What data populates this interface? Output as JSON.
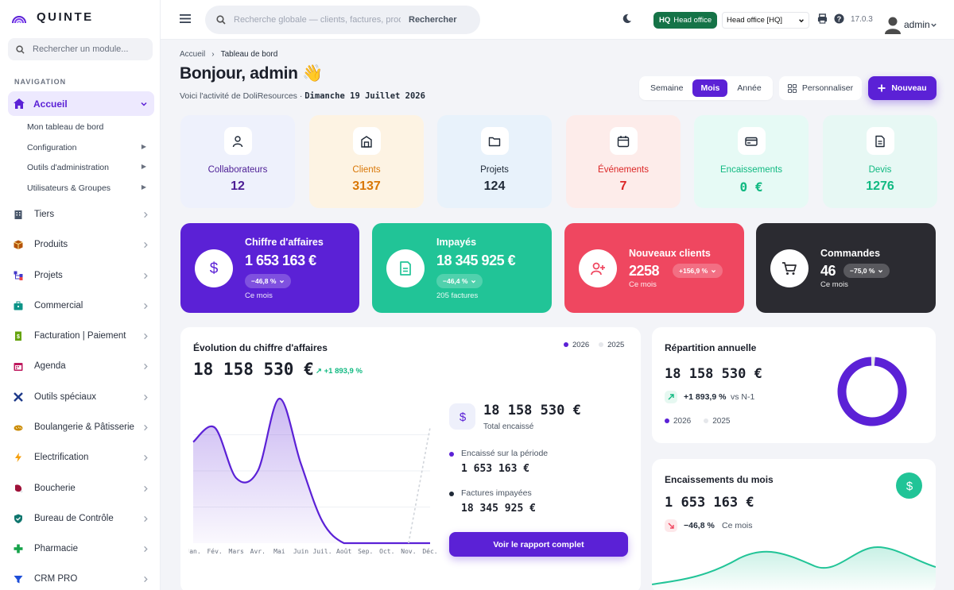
{
  "brand": {
    "name": "QUINTE"
  },
  "sidebar": {
    "search_placeholder": "Rechercher un module...",
    "heading": "NAVIGATION",
    "active": "Accueil",
    "subitems": [
      {
        "label": "Mon tableau de bord",
        "arrow": ""
      },
      {
        "label": "Configuration",
        "arrow": "▶"
      },
      {
        "label": "Outils d'administration",
        "arrow": "▶"
      },
      {
        "label": "Utilisateurs & Groupes",
        "arrow": "▶"
      }
    ],
    "items": [
      {
        "label": "Tiers",
        "icon": "building-icon",
        "color": "#475569"
      },
      {
        "label": "Produits",
        "icon": "box-icon",
        "color": "#b45309"
      },
      {
        "label": "Projets",
        "icon": "project-tree-icon",
        "color": "#4338ca"
      },
      {
        "label": "Commercial",
        "icon": "briefcase-icon",
        "color": "#0d9488"
      },
      {
        "label": "Facturation | Paiement",
        "icon": "invoice-icon",
        "color": "#65a30d"
      },
      {
        "label": "Agenda",
        "icon": "calendar-icon",
        "color": "#be185d"
      },
      {
        "label": "Outils spéciaux",
        "icon": "tools-icon",
        "color": "#1e3a8a"
      },
      {
        "label": "Boulangerie & Pâtisserie",
        "icon": "bread-icon",
        "color": "#ca8a04"
      },
      {
        "label": "Electrification",
        "icon": "lightning-icon",
        "color": "#f59e0b"
      },
      {
        "label": "Boucherie",
        "icon": "meat-icon",
        "color": "#9f1239"
      },
      {
        "label": "Bureau de Contrôle",
        "icon": "shield-check-icon",
        "color": "#0f766e"
      },
      {
        "label": "Pharmacie",
        "icon": "cross-icon",
        "color": "#16a34a"
      },
      {
        "label": "CRM PRO",
        "icon": "funnel-icon",
        "color": "#1d4ed8"
      }
    ]
  },
  "topbar": {
    "search_placeholder": "Recherche globale — clients, factures, prod",
    "search_button": "Rechercher",
    "hq_badge_short": "HQ",
    "hq_badge_label": "Head office",
    "entity": "Head office [HQ]",
    "version": "17.0.3",
    "user": "admin"
  },
  "header": {
    "breadcrumb_home": "Accueil",
    "breadcrumb_sep": "›",
    "breadcrumb_current": "Tableau de bord",
    "greeting": "Bonjour, admin 👋",
    "subtitle_prefix": "Voici l'activité de DoliResources · ",
    "date": "Dimanche 19 Juillet 2026",
    "periods": [
      "Semaine",
      "Mois",
      "Année"
    ],
    "period_active": "Mois",
    "customize": "Personnaliser",
    "new": "Nouveau"
  },
  "stats": [
    {
      "label": "Collaborateurs",
      "value": "12",
      "icon": "user-icon",
      "bg": "#eef1fc",
      "color": "#4c1d95"
    },
    {
      "label": "Clients",
      "value": "3137",
      "icon": "store-icon",
      "bg": "#fdf3e3",
      "color": "#d97706"
    },
    {
      "label": "Projets",
      "value": "124",
      "icon": "folder-icon",
      "bg": "#e8f2fb",
      "color": "#1f2937"
    },
    {
      "label": "Événements",
      "value": "7",
      "icon": "calendar-icon",
      "bg": "#fdecea",
      "color": "#dc2626"
    },
    {
      "label": "Encaissements",
      "value": "0 €",
      "icon": "credit-card-icon",
      "bg": "#e6faf5",
      "color": "#10b981"
    },
    {
      "label": "Devis",
      "value": "1276",
      "icon": "document-icon",
      "bg": "#e7f8f4",
      "color": "#10b981"
    }
  ],
  "kpis": [
    {
      "title": "Chiffre d'affaires",
      "amount": "1 653 163 €",
      "change": "−46,8 %",
      "note": "Ce mois",
      "bg": "#5b21d6",
      "icon": "dollar-icon"
    },
    {
      "title": "Impayés",
      "amount": "18 345 925 €",
      "change": "−46,4 %",
      "note": "205 factures",
      "bg": "#21c497",
      "icon": "invoice-icon"
    },
    {
      "title": "Nouveaux clients",
      "amount": "2258",
      "change": "+156,9 %",
      "note": "Ce mois",
      "bg": "#ef4760",
      "icon": "user-plus-icon"
    },
    {
      "title": "Commandes",
      "amount": "46",
      "change": "−75,0 %",
      "note": "Ce mois",
      "bg": "#2b2b31",
      "icon": "cart-icon"
    }
  ],
  "revenue": {
    "title": "Évolution du chiffre d'affaires",
    "total": "18 158 530 €",
    "growth": "↗ +1 893,9 %",
    "legend": [
      "2026",
      "2025"
    ],
    "cashed_total": "18 158 530 €",
    "cashed_label": "Total encaissé",
    "period_label": "Encaissé sur la période",
    "period_value": "1 653 163 €",
    "unpaid_label": "Factures impayées",
    "unpaid_value": "18 345 925 €",
    "report_button": "Voir le rapport complet"
  },
  "chart_data": {
    "type": "area",
    "categories": [
      "Jan.",
      "Fév.",
      "Mars",
      "Avr.",
      "Mai",
      "Juin",
      "Juil.",
      "Août",
      "Sep.",
      "Oct.",
      "Nov.",
      "Déc."
    ],
    "series": [
      {
        "name": "2026",
        "values": [
          0.7,
          0.8,
          0.45,
          0.5,
          1.0,
          0.55,
          0.15,
          0,
          0,
          0,
          0,
          0
        ],
        "color": "#5b21d6"
      },
      {
        "name": "2025",
        "values": [
          null,
          null,
          null,
          null,
          null,
          null,
          null,
          null,
          null,
          null,
          0,
          0.8
        ],
        "color": "#d1d5db"
      }
    ],
    "xlabel": "",
    "ylabel": "",
    "grid": true
  },
  "annual": {
    "title": "Répartition annuelle",
    "total": "18 158 530 €",
    "growth": "+1 893,9 %",
    "growth_suffix": "vs N-1",
    "legend": [
      "2026",
      "2025"
    ],
    "share_2026": 0.98
  },
  "monthly": {
    "title": "Encaissements du mois",
    "total": "1 653 163 €",
    "change": "−46,8 %",
    "change_suffix": "Ce mois"
  }
}
